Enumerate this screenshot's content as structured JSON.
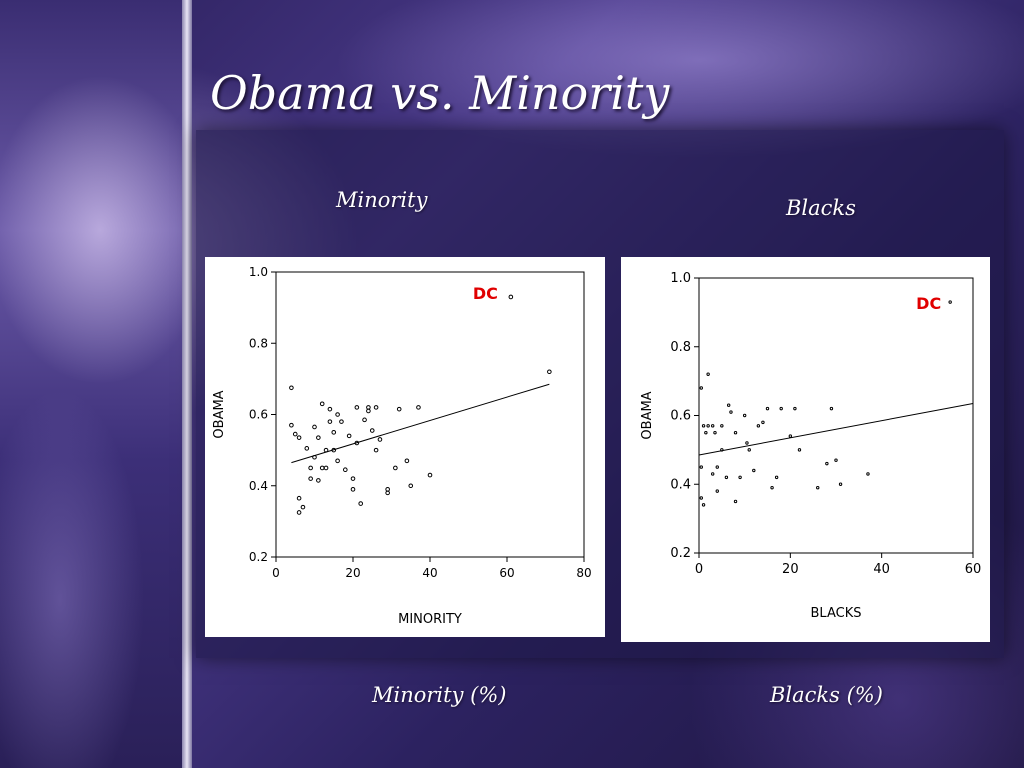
{
  "slide": {
    "title": "Obama vs. Minority",
    "left_heading": "Minority",
    "right_heading": "Blacks",
    "left_caption": "Minority (%)",
    "right_caption": "Blacks (%)"
  },
  "chart_data": [
    {
      "type": "scatter",
      "xlabel": "MINORITY",
      "ylabel": "OBAMA",
      "xlim": [
        0,
        80
      ],
      "ylim": [
        0.2,
        1.0
      ],
      "xticks": [
        "0",
        "20",
        "40",
        "60",
        "80"
      ],
      "yticks": [
        "0.2",
        "0.4",
        "0.6",
        "0.8",
        "1.0"
      ],
      "points": [
        [
          4,
          0.675
        ],
        [
          4,
          0.57
        ],
        [
          5,
          0.545
        ],
        [
          6,
          0.535
        ],
        [
          6,
          0.365
        ],
        [
          6,
          0.325
        ],
        [
          7,
          0.34
        ],
        [
          8,
          0.505
        ],
        [
          9,
          0.45
        ],
        [
          9,
          0.42
        ],
        [
          10,
          0.48
        ],
        [
          10,
          0.565
        ],
        [
          11,
          0.535
        ],
        [
          11,
          0.415
        ],
        [
          12,
          0.63
        ],
        [
          12,
          0.45
        ],
        [
          13,
          0.5
        ],
        [
          13,
          0.45
        ],
        [
          14,
          0.58
        ],
        [
          14,
          0.615
        ],
        [
          15,
          0.5
        ],
        [
          15,
          0.55
        ],
        [
          16,
          0.6
        ],
        [
          16,
          0.47
        ],
        [
          17,
          0.58
        ],
        [
          18,
          0.445
        ],
        [
          19,
          0.54
        ],
        [
          20,
          0.42
        ],
        [
          20,
          0.39
        ],
        [
          21,
          0.62
        ],
        [
          21,
          0.52
        ],
        [
          22,
          0.35
        ],
        [
          23,
          0.585
        ],
        [
          24,
          0.61
        ],
        [
          24,
          0.62
        ],
        [
          25,
          0.555
        ],
        [
          26,
          0.62
        ],
        [
          26,
          0.5
        ],
        [
          27,
          0.53
        ],
        [
          29,
          0.39
        ],
        [
          29,
          0.38
        ],
        [
          31,
          0.45
        ],
        [
          32,
          0.615
        ],
        [
          34,
          0.47
        ],
        [
          35,
          0.4
        ],
        [
          37,
          0.62
        ],
        [
          40,
          0.43
        ],
        [
          71,
          0.72
        ],
        [
          61,
          0.93
        ]
      ],
      "trend": [
        [
          4,
          0.465
        ],
        [
          71,
          0.685
        ]
      ],
      "annotation": "DC"
    },
    {
      "type": "scatter",
      "xlabel": "BLACKS",
      "ylabel": "OBAMA",
      "xlim": [
        0,
        60
      ],
      "ylim": [
        0.2,
        1.0
      ],
      "xticks": [
        "0",
        "20",
        "40",
        "60"
      ],
      "yticks": [
        "0.2",
        "0.4",
        "0.6",
        "0.8",
        "1.0"
      ],
      "points": [
        [
          0.5,
          0.68
        ],
        [
          0.5,
          0.45
        ],
        [
          0.5,
          0.36
        ],
        [
          1,
          0.34
        ],
        [
          1,
          0.57
        ],
        [
          1.5,
          0.55
        ],
        [
          2,
          0.57
        ],
        [
          2,
          0.72
        ],
        [
          3,
          0.57
        ],
        [
          3,
          0.43
        ],
        [
          3.5,
          0.55
        ],
        [
          4,
          0.45
        ],
        [
          4,
          0.38
        ],
        [
          5,
          0.5
        ],
        [
          5,
          0.57
        ],
        [
          6,
          0.42
        ],
        [
          6.5,
          0.63
        ],
        [
          7,
          0.61
        ],
        [
          8,
          0.55
        ],
        [
          8,
          0.35
        ],
        [
          9,
          0.42
        ],
        [
          10,
          0.6
        ],
        [
          10.5,
          0.52
        ],
        [
          11,
          0.5
        ],
        [
          12,
          0.44
        ],
        [
          13,
          0.57
        ],
        [
          14,
          0.58
        ],
        [
          15,
          0.62
        ],
        [
          16,
          0.39
        ],
        [
          17,
          0.42
        ],
        [
          18,
          0.62
        ],
        [
          20,
          0.54
        ],
        [
          21,
          0.62
        ],
        [
          22,
          0.5
        ],
        [
          26,
          0.39
        ],
        [
          28,
          0.46
        ],
        [
          29,
          0.62
        ],
        [
          30,
          0.47
        ],
        [
          31,
          0.4
        ],
        [
          37,
          0.43
        ],
        [
          55,
          0.93
        ]
      ],
      "trend": [
        [
          0,
          0.485
        ],
        [
          60,
          0.635
        ]
      ],
      "annotation": "DC"
    }
  ]
}
